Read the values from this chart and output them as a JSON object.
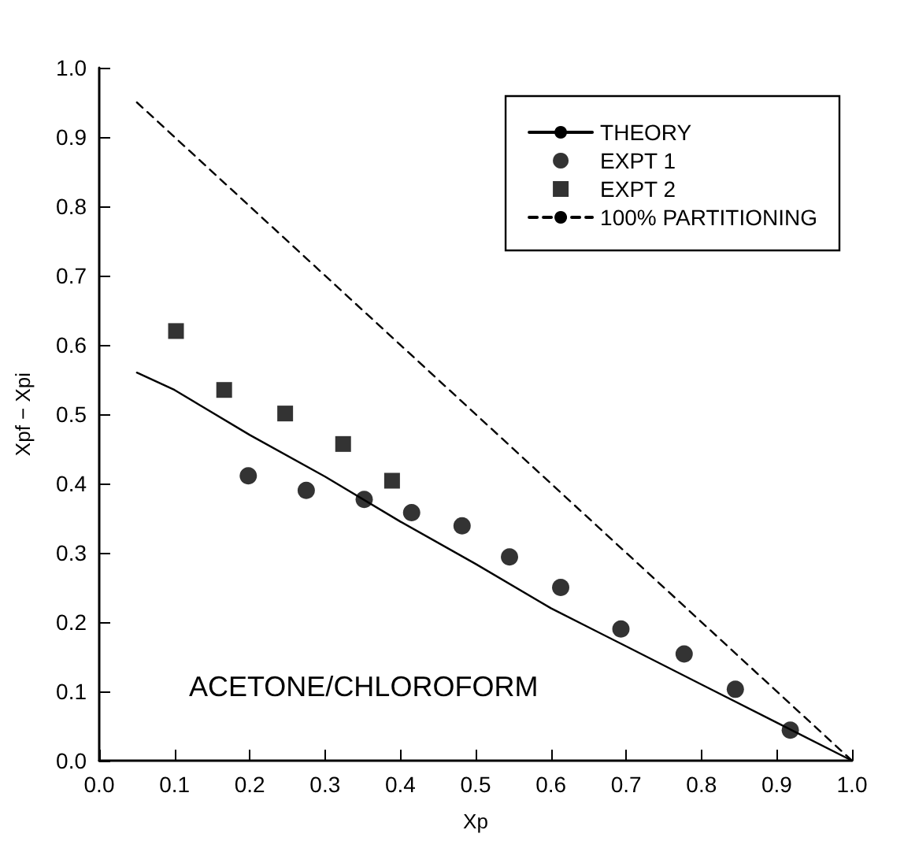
{
  "chart_data": {
    "type": "scatter",
    "xlabel": "Xp",
    "ylabel": "Xpf − Xpi",
    "xlim": [
      0,
      1
    ],
    "ylim": [
      0,
      1
    ],
    "xticks": [
      {
        "value": 0,
        "label": "0.0"
      },
      0.1,
      0.2,
      0.3,
      0.4,
      0.5,
      0.6,
      0.7,
      0.8,
      0.9,
      {
        "value": 1,
        "label": "1.0"
      }
    ],
    "yticks": [
      {
        "value": 0,
        "label": "0.0"
      },
      0.1,
      0.2,
      0.3,
      0.4,
      0.5,
      0.6,
      0.7,
      0.8,
      0.9,
      {
        "value": 1,
        "label": "1.0"
      }
    ],
    "grid": false,
    "legend": "top right",
    "annotations": [
      "ACETONE/CHLOROFORM"
    ],
    "series": [
      {
        "name": "THEORY",
        "type": "line",
        "line_style": "solid",
        "marker": "none",
        "color": "#000000",
        "x": [
          0.05,
          0.1,
          0.2,
          0.3,
          0.4,
          0.5,
          0.6,
          0.7,
          0.8,
          0.9,
          1.0
        ],
        "values": [
          0.56,
          0.535,
          0.47,
          0.41,
          0.345,
          0.284,
          0.22,
          0.165,
          0.11,
          0.055,
          0
        ]
      },
      {
        "name": "EXPT 1",
        "type": "scatter",
        "marker": "circle",
        "color": "#000000",
        "x": [
          0.198,
          0.275,
          0.352,
          0.415,
          0.482,
          0.545,
          0.613,
          0.693,
          0.777,
          0.845,
          0.918
        ],
        "values": [
          0.411,
          0.39,
          0.377,
          0.358,
          0.339,
          0.294,
          0.25,
          0.19,
          0.154,
          0.103,
          0.044
        ]
      },
      {
        "name": "EXPT 2",
        "type": "scatter",
        "marker": "square",
        "color": "#000000",
        "x": [
          0.102,
          0.166,
          0.247,
          0.324,
          0.389
        ],
        "values": [
          0.62,
          0.535,
          0.501,
          0.457,
          0.404
        ]
      },
      {
        "name": "100% PARTITIONING",
        "type": "line",
        "line_style": "dashed",
        "marker": "none",
        "color": "#000000",
        "x": [
          0.05,
          1.0
        ],
        "values": [
          0.95,
          0
        ]
      }
    ]
  }
}
